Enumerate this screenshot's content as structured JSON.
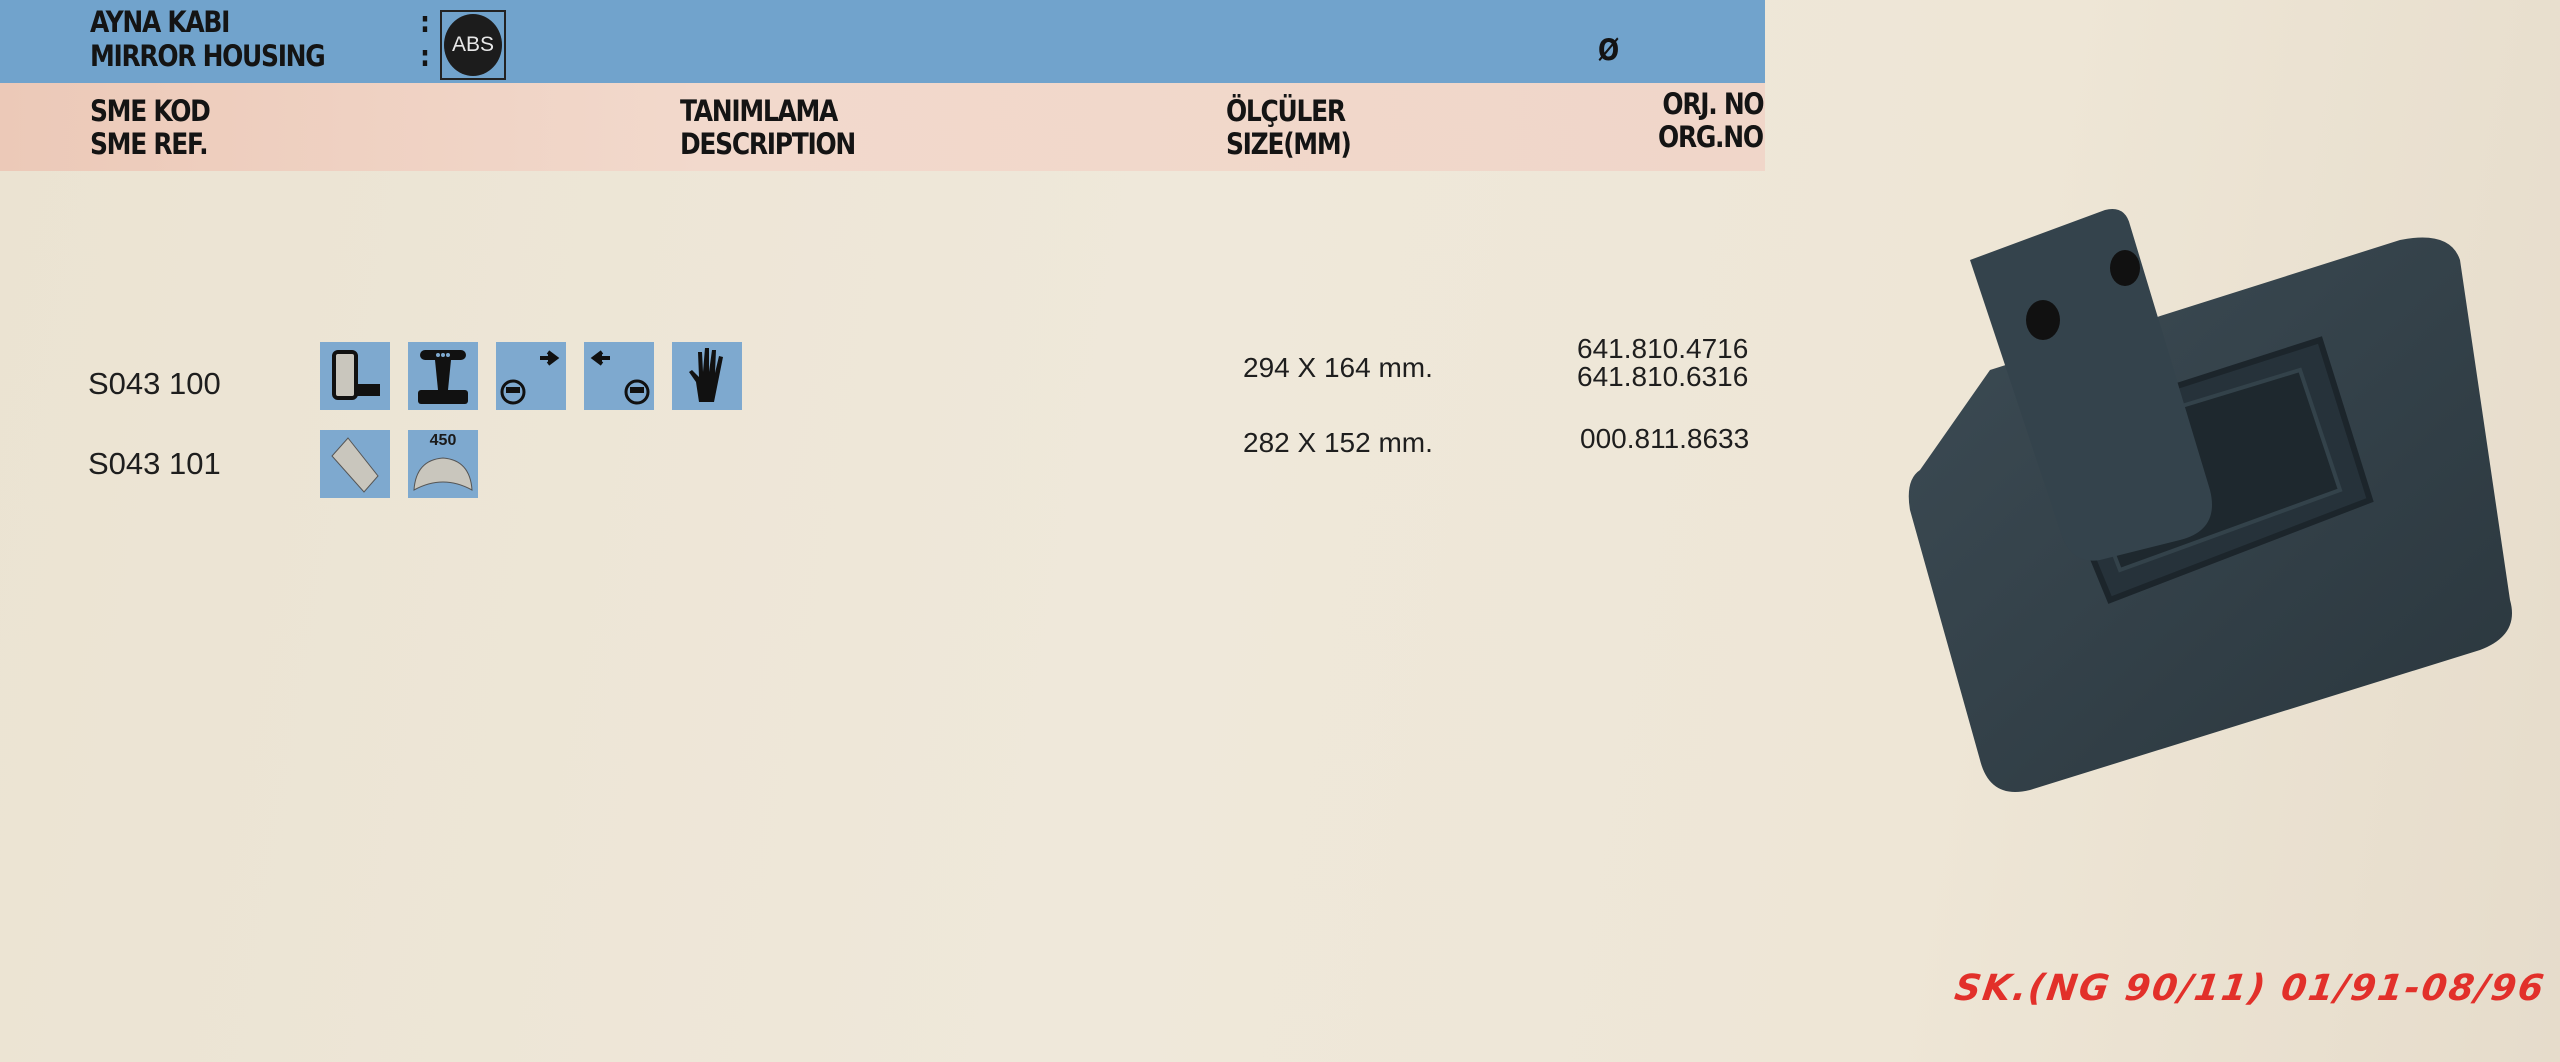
{
  "header": {
    "title_tr": "AYNA KABI",
    "title_en": "MIRROR HOUSING",
    "colon": ":",
    "material_badge": "ABS",
    "diameter_symbol": "Ø"
  },
  "columns": {
    "code_tr": "SME KOD",
    "code_en": "SME REF.",
    "desc_tr": "TANIMLAMA",
    "desc_en": "DESCRIPTION",
    "size_tr": "ÖLÇÜLER",
    "size_en": "SIZE(MM)",
    "orig_tr": "ORJ. NO",
    "orig_en": "ORG.NO"
  },
  "rows": [
    {
      "code": "S043 100",
      "icons": [
        "mirror-with-arm-icon",
        "mount-column-icon",
        "right-hand-drive-icon",
        "left-hand-drive-icon",
        "manual-adjust-hand-icon"
      ],
      "size": "294 X 164 mm.",
      "orig_nos": [
        "641.810.4716",
        "641.810.6316"
      ]
    },
    {
      "code": "S043 101",
      "icons": [
        "flat-glass-icon",
        "convex-glass-icon"
      ],
      "icon_label_radius": "450",
      "size": "282 X 152 mm.",
      "orig_nos": [
        "000.811.8633"
      ]
    }
  ],
  "footer_note": "SK.(NG 90/11) 01/91-08/96",
  "colors": {
    "header_blue": "#71a3cc",
    "column_band": "#f0d6c9",
    "note_red": "#e2302a",
    "icon_bg": "#7ea9cf"
  }
}
